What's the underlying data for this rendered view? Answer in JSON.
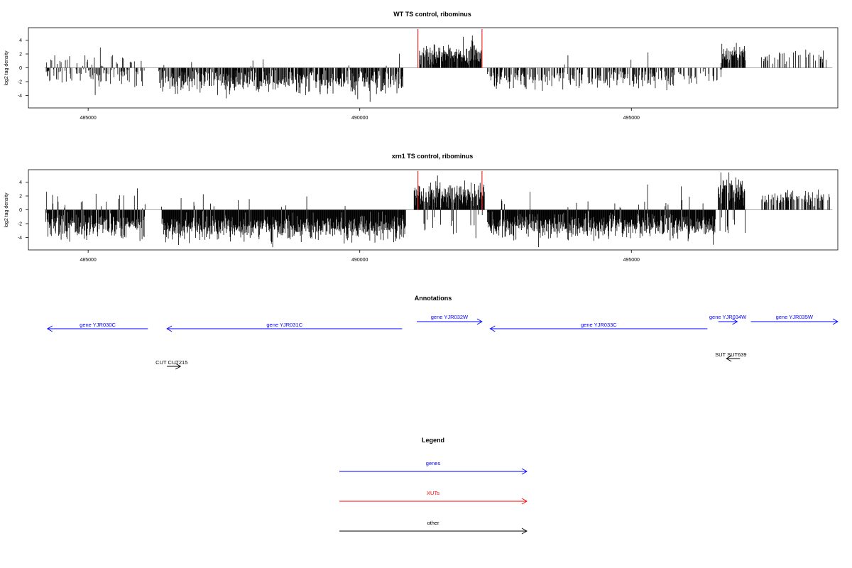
{
  "chart_data": [
    {
      "type": "bar",
      "title": "WT TS control, ribominus",
      "ylabel": "log2 tag density",
      "xlabel": "",
      "xlim": [
        483900,
        498800
      ],
      "ylim": [
        -5.8,
        5.8
      ],
      "xticks": [
        485000,
        490000,
        495000
      ],
      "yticks": [
        -4,
        -2,
        0,
        2,
        4
      ],
      "grid": false,
      "baseline": {
        "from": 484200,
        "to": 498700,
        "value": 0
      },
      "highlight_positions": [
        491070,
        492250
      ],
      "highlight_height": 5.6,
      "colors": {
        "bars": "#000000",
        "highlight": "#e8302c",
        "baseline": "#888888"
      },
      "segments": [
        {
          "from": 484220,
          "to": 486050,
          "mean": -1.0,
          "spread": 1.2,
          "pos_prob": 0.28,
          "pos_mean": 0.9,
          "density": 0.55
        },
        {
          "from": 486300,
          "to": 490800,
          "mean": -1.9,
          "spread": 1.3,
          "pos_prob": 0.03,
          "pos_mean": 0.6,
          "density": 0.7
        },
        {
          "from": 491100,
          "to": 492250,
          "mean": 2.0,
          "spread": 1.2,
          "pos_prob": 1.0,
          "pos_mean": 2.0,
          "density": 0.85
        },
        {
          "from": 492350,
          "to": 495800,
          "mean": -1.5,
          "spread": 1.2,
          "pos_prob": 0.02,
          "pos_mean": 0.5,
          "density": 0.55
        },
        {
          "from": 495850,
          "to": 496700,
          "mean": -1.2,
          "spread": 1.0,
          "pos_prob": 0.0,
          "pos_mean": 0.5,
          "density": 0.3
        },
        {
          "from": 496650,
          "to": 497100,
          "mean": 2.0,
          "spread": 1.2,
          "pos_prob": 1.0,
          "pos_mean": 2.0,
          "density": 0.8
        },
        {
          "from": 497300,
          "to": 498650,
          "mean": 1.6,
          "spread": 0.7,
          "pos_prob": 1.0,
          "pos_mean": 1.6,
          "density": 0.25
        }
      ]
    },
    {
      "type": "bar",
      "title": "xrn1 TS control, ribominus",
      "ylabel": "log2 tag density",
      "xlabel": "",
      "xlim": [
        483900,
        498800
      ],
      "ylim": [
        -5.8,
        5.8
      ],
      "xticks": [
        485000,
        490000,
        495000
      ],
      "yticks": [
        -4,
        -2,
        0,
        2,
        4
      ],
      "grid": false,
      "baseline": {
        "from": 484200,
        "to": 498700,
        "value": 0
      },
      "highlight_positions": [
        491070,
        492250
      ],
      "highlight_height": 5.6,
      "colors": {
        "bars": "#000000",
        "highlight": "#e8302c",
        "baseline": "#888888"
      },
      "segments": [
        {
          "from": 484220,
          "to": 486050,
          "mean": -2.3,
          "spread": 1.4,
          "pos_prob": 0.12,
          "pos_mean": 1.3,
          "density": 0.95
        },
        {
          "from": 486350,
          "to": 490850,
          "mean": -2.6,
          "spread": 1.3,
          "pos_prob": 0.03,
          "pos_mean": 0.8,
          "density": 1.2
        },
        {
          "from": 491000,
          "to": 492300,
          "mean": 2.2,
          "spread": 1.3,
          "pos_prob": 0.92,
          "pos_mean": 2.3,
          "density": 1.0
        },
        {
          "from": 492350,
          "to": 496550,
          "mean": -2.4,
          "spread": 1.3,
          "pos_prob": 0.04,
          "pos_mean": 0.8,
          "density": 1.2
        },
        {
          "from": 496600,
          "to": 497100,
          "mean": 2.6,
          "spread": 1.5,
          "pos_prob": 0.85,
          "pos_mean": 2.8,
          "density": 1.0
        },
        {
          "from": 497400,
          "to": 498650,
          "mean": 1.8,
          "spread": 0.9,
          "pos_prob": 1.0,
          "pos_mean": 1.8,
          "density": 0.45
        }
      ]
    }
  ],
  "annotations": {
    "title": "Annotations",
    "xlim": [
      483900,
      498800
    ],
    "features": [
      {
        "label": "gene YJR030C",
        "from": 486100,
        "to": 484250,
        "row": "lower",
        "color": "#0000ff"
      },
      {
        "label": "gene YJR031C",
        "from": 490780,
        "to": 486450,
        "row": "lower",
        "color": "#0000ff"
      },
      {
        "label": "gene YJR032W",
        "from": 491050,
        "to": 492250,
        "row": "upper",
        "color": "#0000ff"
      },
      {
        "label": "gene YJR033C",
        "from": 496400,
        "to": 492400,
        "row": "lower",
        "color": "#0000ff"
      },
      {
        "label": "gene YJR034W",
        "from": 496600,
        "to": 496950,
        "row": "upper",
        "color": "#0000ff"
      },
      {
        "label": "gene YJR035W",
        "from": 497200,
        "to": 498800,
        "row": "upper",
        "color": "#0000ff"
      },
      {
        "label": "CUT CUT215",
        "from": 486450,
        "to": 486700,
        "row": "cut",
        "color": "#000000"
      },
      {
        "label": "SUT SUT639",
        "from": 497000,
        "to": 496750,
        "row": "sut",
        "color": "#000000"
      }
    ]
  },
  "legend": {
    "title": "Legend",
    "entries": [
      {
        "label": "genes",
        "color": "#0000ff"
      },
      {
        "label": "XUTs",
        "color": "#ff0000"
      },
      {
        "label": "other",
        "color": "#000000"
      }
    ]
  }
}
